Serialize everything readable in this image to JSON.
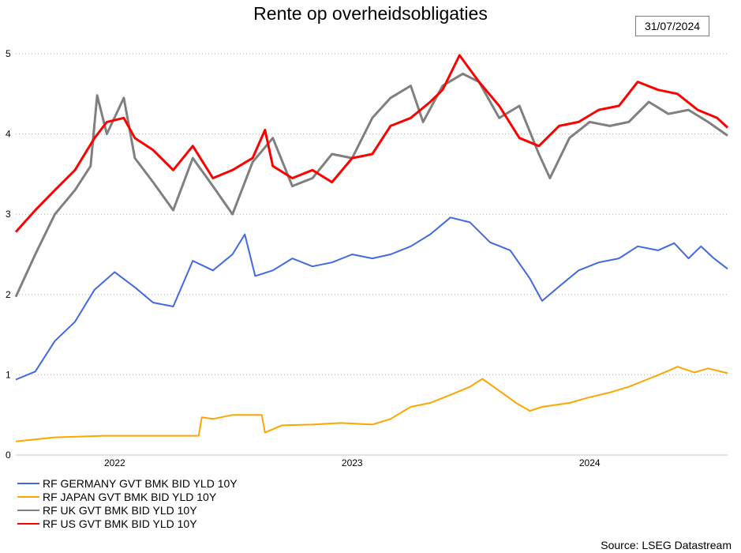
{
  "title": "Rente op overheidsobligaties",
  "date_label": "31/07/2024",
  "source": "Source: LSEG Datastream",
  "chart_data": {
    "type": "line",
    "title": "Rente op overheidsobligaties",
    "xlabel": "",
    "ylabel": "",
    "ylim": [
      0,
      5
    ],
    "xlim": [
      "2021-08-02",
      "2024-07-31"
    ],
    "y_ticks": [
      "0",
      "1",
      "2",
      "3",
      "4",
      "5"
    ],
    "x_ticks": [
      {
        "date": "2022-01-01",
        "label": "2022"
      },
      {
        "date": "2023-01-01",
        "label": "2023"
      },
      {
        "date": "2024-01-01",
        "label": "2024"
      }
    ],
    "grid": "horizontal-dotted",
    "legend_position": "bottom-left",
    "series": [
      {
        "name": "RF GERMANY GVT BMK BID YLD 10Y",
        "color": "#4169E1",
        "points": [
          [
            "2021-08-02",
            0.94
          ],
          [
            "2021-09-01",
            1.04
          ],
          [
            "2021-10-01",
            1.42
          ],
          [
            "2021-11-01",
            1.66
          ],
          [
            "2021-12-01",
            2.06
          ],
          [
            "2022-01-01",
            2.28
          ],
          [
            "2022-02-01",
            2.09
          ],
          [
            "2022-03-01",
            1.9
          ],
          [
            "2022-04-01",
            1.85
          ],
          [
            "2022-05-01",
            2.42
          ],
          [
            "2022-06-01",
            2.3
          ],
          [
            "2022-07-01",
            2.5
          ],
          [
            "2022-07-20",
            2.75
          ],
          [
            "2022-08-05",
            2.23
          ],
          [
            "2022-09-01",
            2.3
          ],
          [
            "2022-10-01",
            2.45
          ],
          [
            "2022-11-01",
            2.35
          ],
          [
            "2022-12-01",
            2.4
          ],
          [
            "2023-01-01",
            2.5
          ],
          [
            "2023-02-01",
            2.45
          ],
          [
            "2023-03-01",
            2.5
          ],
          [
            "2023-04-01",
            2.6
          ],
          [
            "2023-05-01",
            2.75
          ],
          [
            "2023-06-01",
            2.96
          ],
          [
            "2023-07-01",
            2.9
          ],
          [
            "2023-08-01",
            2.65
          ],
          [
            "2023-09-01",
            2.55
          ],
          [
            "2023-10-01",
            2.2
          ],
          [
            "2023-10-20",
            1.92
          ],
          [
            "2023-11-15",
            2.1
          ],
          [
            "2023-12-15",
            2.3
          ],
          [
            "2024-01-15",
            2.4
          ],
          [
            "2024-02-15",
            2.45
          ],
          [
            "2024-03-15",
            2.6
          ],
          [
            "2024-04-15",
            2.55
          ],
          [
            "2024-05-10",
            2.64
          ],
          [
            "2024-06-01",
            2.45
          ],
          [
            "2024-06-20",
            2.6
          ],
          [
            "2024-07-10",
            2.45
          ],
          [
            "2024-07-31",
            2.32
          ]
        ]
      },
      {
        "name": "RF JAPAN GVT BMK BID YLD 10Y",
        "color": "#FFA500",
        "points": [
          [
            "2021-08-02",
            0.17
          ],
          [
            "2021-10-01",
            0.22
          ],
          [
            "2021-12-15",
            0.24
          ],
          [
            "2022-03-01",
            0.24
          ],
          [
            "2022-05-10",
            0.24
          ],
          [
            "2022-05-15",
            0.47
          ],
          [
            "2022-06-01",
            0.45
          ],
          [
            "2022-07-01",
            0.5
          ],
          [
            "2022-08-15",
            0.5
          ],
          [
            "2022-08-20",
            0.28
          ],
          [
            "2022-09-15",
            0.37
          ],
          [
            "2022-11-01",
            0.38
          ],
          [
            "2022-12-15",
            0.4
          ],
          [
            "2023-02-01",
            0.38
          ],
          [
            "2023-03-01",
            0.45
          ],
          [
            "2023-04-01",
            0.6
          ],
          [
            "2023-05-01",
            0.65
          ],
          [
            "2023-06-01",
            0.75
          ],
          [
            "2023-07-01",
            0.85
          ],
          [
            "2023-07-20",
            0.95
          ],
          [
            "2023-08-15",
            0.8
          ],
          [
            "2023-09-10",
            0.65
          ],
          [
            "2023-10-01",
            0.55
          ],
          [
            "2023-10-20",
            0.6
          ],
          [
            "2023-12-01",
            0.65
          ],
          [
            "2024-01-01",
            0.72
          ],
          [
            "2024-02-01",
            0.78
          ],
          [
            "2024-03-01",
            0.85
          ],
          [
            "2024-04-01",
            0.95
          ],
          [
            "2024-05-01",
            1.05
          ],
          [
            "2024-05-15",
            1.1
          ],
          [
            "2024-06-10",
            1.03
          ],
          [
            "2024-07-01",
            1.08
          ],
          [
            "2024-07-31",
            1.02
          ]
        ]
      },
      {
        "name": "RF UK GVT BMK BID YLD 10Y",
        "color": "#808080",
        "points": [
          [
            "2021-08-02",
            1.97
          ],
          [
            "2021-09-01",
            2.5
          ],
          [
            "2021-10-01",
            3.0
          ],
          [
            "2021-11-01",
            3.3
          ],
          [
            "2021-11-25",
            3.6
          ],
          [
            "2021-12-05",
            4.48
          ],
          [
            "2021-12-20",
            4.0
          ],
          [
            "2022-01-15",
            4.45
          ],
          [
            "2022-02-01",
            3.7
          ],
          [
            "2022-03-01",
            3.4
          ],
          [
            "2022-04-01",
            3.05
          ],
          [
            "2022-05-01",
            3.7
          ],
          [
            "2022-06-01",
            3.35
          ],
          [
            "2022-07-01",
            3.0
          ],
          [
            "2022-08-01",
            3.65
          ],
          [
            "2022-09-01",
            3.95
          ],
          [
            "2022-10-01",
            3.35
          ],
          [
            "2022-11-01",
            3.45
          ],
          [
            "2022-12-01",
            3.75
          ],
          [
            "2023-01-01",
            3.7
          ],
          [
            "2023-02-01",
            4.2
          ],
          [
            "2023-03-01",
            4.45
          ],
          [
            "2023-04-01",
            4.6
          ],
          [
            "2023-04-20",
            4.15
          ],
          [
            "2023-05-20",
            4.6
          ],
          [
            "2023-06-20",
            4.75
          ],
          [
            "2023-07-15",
            4.65
          ],
          [
            "2023-08-15",
            4.2
          ],
          [
            "2023-09-15",
            4.35
          ],
          [
            "2023-10-15",
            3.75
          ],
          [
            "2023-11-01",
            3.45
          ],
          [
            "2023-12-01",
            3.95
          ],
          [
            "2024-01-01",
            4.15
          ],
          [
            "2024-02-01",
            4.1
          ],
          [
            "2024-03-01",
            4.15
          ],
          [
            "2024-04-01",
            4.4
          ],
          [
            "2024-05-01",
            4.25
          ],
          [
            "2024-06-01",
            4.3
          ],
          [
            "2024-07-01",
            4.15
          ],
          [
            "2024-07-31",
            3.98
          ]
        ]
      },
      {
        "name": "RF US GVT BMK BID YLD 10Y",
        "color": "#FF0000",
        "points": [
          [
            "2021-08-02",
            2.78
          ],
          [
            "2021-09-01",
            3.05
          ],
          [
            "2021-10-01",
            3.3
          ],
          [
            "2021-11-01",
            3.55
          ],
          [
            "2021-12-01",
            3.95
          ],
          [
            "2021-12-20",
            4.15
          ],
          [
            "2022-01-15",
            4.2
          ],
          [
            "2022-02-01",
            3.95
          ],
          [
            "2022-03-01",
            3.8
          ],
          [
            "2022-04-01",
            3.55
          ],
          [
            "2022-05-01",
            3.85
          ],
          [
            "2022-06-01",
            3.45
          ],
          [
            "2022-07-01",
            3.55
          ],
          [
            "2022-08-01",
            3.7
          ],
          [
            "2022-08-20",
            4.05
          ],
          [
            "2022-09-01",
            3.6
          ],
          [
            "2022-10-01",
            3.45
          ],
          [
            "2022-11-01",
            3.55
          ],
          [
            "2022-12-01",
            3.4
          ],
          [
            "2023-01-01",
            3.7
          ],
          [
            "2023-02-01",
            3.75
          ],
          [
            "2023-03-01",
            4.1
          ],
          [
            "2023-04-01",
            4.2
          ],
          [
            "2023-05-01",
            4.4
          ],
          [
            "2023-05-20",
            4.55
          ],
          [
            "2023-06-15",
            4.98
          ],
          [
            "2023-07-15",
            4.65
          ],
          [
            "2023-08-15",
            4.35
          ],
          [
            "2023-09-15",
            3.95
          ],
          [
            "2023-10-15",
            3.85
          ],
          [
            "2023-11-15",
            4.1
          ],
          [
            "2023-12-15",
            4.15
          ],
          [
            "2024-01-15",
            4.3
          ],
          [
            "2024-02-15",
            4.35
          ],
          [
            "2024-03-15",
            4.65
          ],
          [
            "2024-04-15",
            4.55
          ],
          [
            "2024-05-15",
            4.5
          ],
          [
            "2024-06-15",
            4.3
          ],
          [
            "2024-07-15",
            4.2
          ],
          [
            "2024-07-31",
            4.08
          ]
        ]
      }
    ]
  }
}
